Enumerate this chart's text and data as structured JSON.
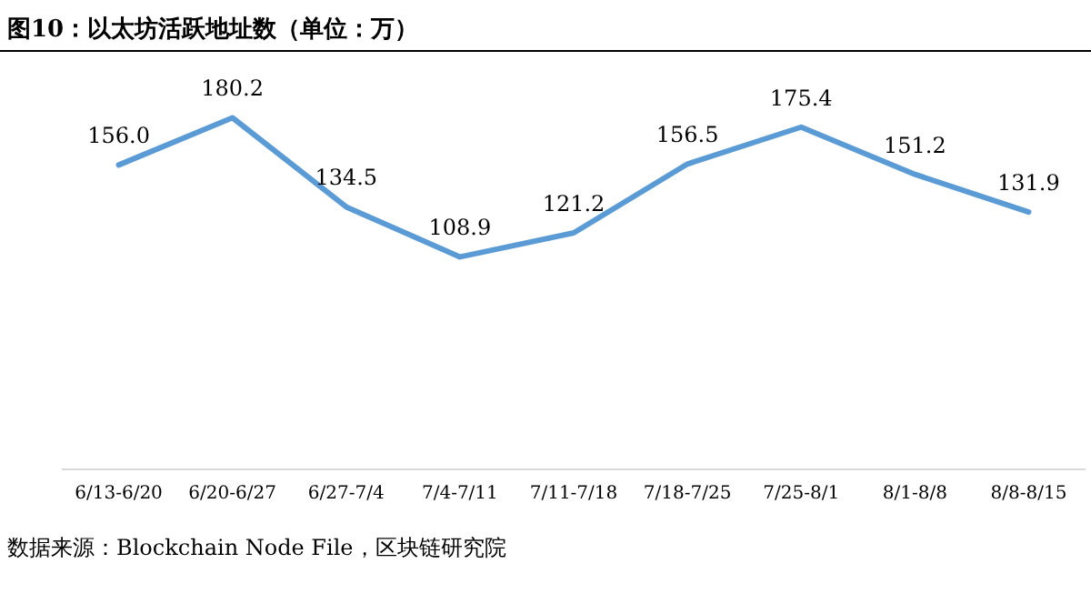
{
  "chart_data": {
    "type": "line",
    "title": "图10：以太坊活跃地址数（单位：万）",
    "categories": [
      "6/13-6/20",
      "6/20-6/27",
      "6/27-7/4",
      "7/4-7/11",
      "7/11-7/18",
      "7/18-7/25",
      "7/25-8/1",
      "8/1-8/8",
      "8/8-8/15"
    ],
    "values": [
      156.0,
      180.2,
      134.5,
      108.9,
      121.2,
      156.5,
      175.4,
      151.2,
      131.9
    ],
    "value_labels": [
      "156.0",
      "180.2",
      "134.5",
      "108.9",
      "121.2",
      "156.5",
      "175.4",
      "151.2",
      "131.9"
    ],
    "color": "#5b9bd5",
    "marker": "none",
    "line_style": "solid",
    "annotations": [
      "数据来源：Blockchain Node File，区块链研究院"
    ]
  }
}
